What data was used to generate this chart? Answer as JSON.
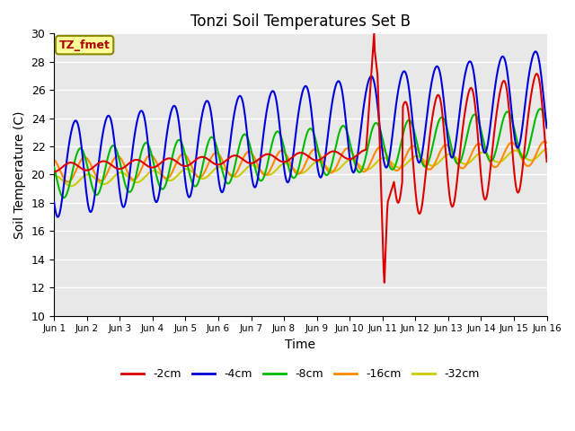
{
  "title": "Tonzi Soil Temperatures Set B",
  "xlabel": "Time",
  "ylabel": "Soil Temperature (C)",
  "ylim": [
    10,
    30
  ],
  "xlim": [
    0,
    15
  ],
  "xtick_labels": [
    "Jun 1",
    "Jun 2",
    "Jun 3",
    "Jun 4",
    "Jun 5",
    "Jun 6",
    "Jun 7",
    "Jun 8",
    "Jun 9",
    "Jun 10",
    "Jun 11",
    "Jun 12",
    "Jun 13",
    "Jun 14",
    "Jun 15",
    "Jun 16"
  ],
  "annotation_text": "TZ_fmet",
  "annotation_color": "#aa0000",
  "annotation_bg": "#ffff99",
  "annotation_edge": "#888800",
  "bg_color": "#e8e8e8",
  "series_colors": [
    "#dd0000",
    "#0000dd",
    "#00bb00",
    "#ff8800",
    "#cccc00"
  ],
  "series_labels": [
    "-2cm",
    "-4cm",
    "-8cm",
    "-16cm",
    "-32cm"
  ],
  "linewidth": 1.5
}
